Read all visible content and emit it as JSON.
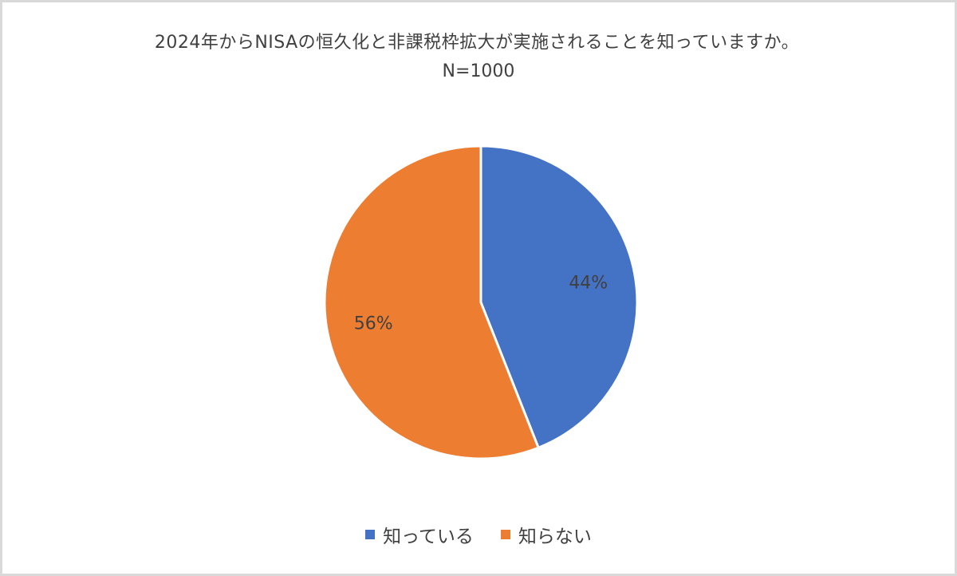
{
  "chart_data": {
    "type": "pie",
    "title": "2024年からNISAの恒久化と非課税枠拡大が実施されることを知っていますか。",
    "subtitle": "N=1000",
    "categories": [
      "知っている",
      "知らない"
    ],
    "values": [
      44,
      56
    ],
    "value_labels": [
      "44%",
      "56%"
    ],
    "colors": [
      "#4472c4",
      "#ed7d31"
    ],
    "legend_position": "bottom"
  }
}
